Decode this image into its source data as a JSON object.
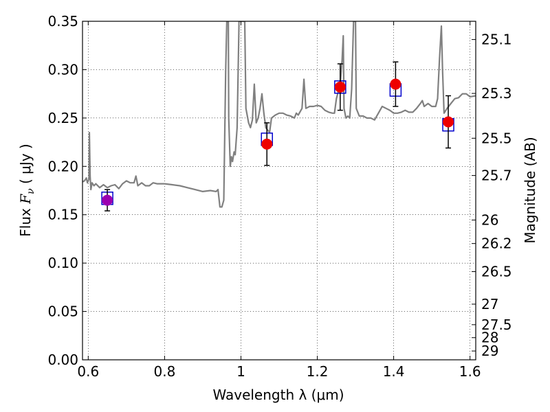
{
  "chart_data": {
    "type": "scatter",
    "title": "",
    "xlabel": "Wavelength  λ (μm)",
    "ylabel_prefix": "Flux  ",
    "ylabel_var": "F",
    "ylabel_sub": "ν",
    "ylabel_units": "  ( μJy )",
    "y2label": "Magnitude (AB)",
    "xlim": [
      0.585,
      1.615
    ],
    "ylim": [
      0.0,
      0.35
    ],
    "x_ticks": [
      0.6,
      0.8,
      1.0,
      1.2,
      1.4,
      1.6
    ],
    "x_tick_labels": [
      "0.6",
      "0.8",
      "1",
      "1.2",
      "1.4",
      "1.6"
    ],
    "y_ticks": [
      0.0,
      0.05,
      0.1,
      0.15,
      0.2,
      0.25,
      0.3,
      0.35
    ],
    "y_tick_labels": [
      "0.00",
      "0.05",
      "0.10",
      "0.15",
      "0.20",
      "0.25",
      "0.30",
      "0.35"
    ],
    "y2_ticks": [
      {
        "mag": 25.1,
        "label": "25.1"
      },
      {
        "mag": 25.3,
        "label": "25.3"
      },
      {
        "mag": 25.5,
        "label": "25.5"
      },
      {
        "mag": 25.7,
        "label": "25.7"
      },
      {
        "mag": 26.0,
        "label": "26"
      },
      {
        "mag": 26.2,
        "label": "26.2"
      },
      {
        "mag": 26.5,
        "label": "26.5"
      },
      {
        "mag": 27.0,
        "label": "27"
      },
      {
        "mag": 27.5,
        "label": "27.5"
      },
      {
        "mag": 28.0,
        "label": "28"
      },
      {
        "mag": 29.0,
        "label": "29"
      }
    ],
    "grid": true,
    "colors": {
      "spectrum": "#808080",
      "observed": "#ee0000",
      "observed_first": "#9b00b0",
      "model_box": "#0000cc",
      "errorbar": "#000000"
    },
    "observed_points": [
      {
        "x": 0.65,
        "y": 0.165,
        "err": 0.011
      },
      {
        "x": 1.068,
        "y": 0.223,
        "err": 0.022
      },
      {
        "x": 1.26,
        "y": 0.282,
        "err": 0.024
      },
      {
        "x": 1.405,
        "y": 0.285,
        "err": 0.023
      },
      {
        "x": 1.543,
        "y": 0.246,
        "err": 0.027
      }
    ],
    "model_points": [
      {
        "x": 0.65,
        "y": 0.167
      },
      {
        "x": 1.068,
        "y": 0.228
      },
      {
        "x": 1.26,
        "y": 0.282
      },
      {
        "x": 1.405,
        "y": 0.279
      },
      {
        "x": 1.543,
        "y": 0.243
      }
    ],
    "spectrum": [
      [
        0.585,
        0.184
      ],
      [
        0.59,
        0.185
      ],
      [
        0.595,
        0.188
      ],
      [
        0.598,
        0.183
      ],
      [
        0.602,
        0.187
      ],
      [
        0.603,
        0.235
      ],
      [
        0.605,
        0.19
      ],
      [
        0.607,
        0.176
      ],
      [
        0.61,
        0.183
      ],
      [
        0.615,
        0.18
      ],
      [
        0.62,
        0.182
      ],
      [
        0.63,
        0.178
      ],
      [
        0.64,
        0.181
      ],
      [
        0.65,
        0.178
      ],
      [
        0.66,
        0.18
      ],
      [
        0.67,
        0.181
      ],
      [
        0.68,
        0.177
      ],
      [
        0.69,
        0.182
      ],
      [
        0.7,
        0.185
      ],
      [
        0.71,
        0.183
      ],
      [
        0.72,
        0.183
      ],
      [
        0.725,
        0.19
      ],
      [
        0.73,
        0.18
      ],
      [
        0.74,
        0.183
      ],
      [
        0.75,
        0.18
      ],
      [
        0.76,
        0.18
      ],
      [
        0.77,
        0.183
      ],
      [
        0.78,
        0.182
      ],
      [
        0.8,
        0.182
      ],
      [
        0.82,
        0.181
      ],
      [
        0.84,
        0.18
      ],
      [
        0.86,
        0.178
      ],
      [
        0.88,
        0.176
      ],
      [
        0.9,
        0.174
      ],
      [
        0.92,
        0.175
      ],
      [
        0.935,
        0.174
      ],
      [
        0.94,
        0.176
      ],
      [
        0.945,
        0.158
      ],
      [
        0.95,
        0.158
      ],
      [
        0.955,
        0.165
      ],
      [
        0.96,
        0.3
      ],
      [
        0.963,
        0.35
      ],
      [
        0.967,
        0.35
      ],
      [
        0.968,
        0.25
      ],
      [
        0.972,
        0.2
      ],
      [
        0.975,
        0.21
      ],
      [
        0.978,
        0.205
      ],
      [
        0.982,
        0.215
      ],
      [
        0.985,
        0.212
      ],
      [
        0.99,
        0.24
      ],
      [
        0.995,
        0.35
      ],
      [
        1.01,
        0.35
      ],
      [
        1.013,
        0.26
      ],
      [
        1.02,
        0.245
      ],
      [
        1.025,
        0.24
      ],
      [
        1.03,
        0.248
      ],
      [
        1.035,
        0.285
      ],
      [
        1.04,
        0.245
      ],
      [
        1.045,
        0.25
      ],
      [
        1.05,
        0.26
      ],
      [
        1.055,
        0.275
      ],
      [
        1.06,
        0.255
      ],
      [
        1.065,
        0.24
      ],
      [
        1.075,
        0.235
      ],
      [
        1.08,
        0.25
      ],
      [
        1.09,
        0.253
      ],
      [
        1.1,
        0.255
      ],
      [
        1.11,
        0.255
      ],
      [
        1.12,
        0.253
      ],
      [
        1.13,
        0.252
      ],
      [
        1.14,
        0.25
      ],
      [
        1.145,
        0.255
      ],
      [
        1.15,
        0.253
      ],
      [
        1.16,
        0.26
      ],
      [
        1.165,
        0.29
      ],
      [
        1.17,
        0.26
      ],
      [
        1.18,
        0.262
      ],
      [
        1.19,
        0.262
      ],
      [
        1.2,
        0.263
      ],
      [
        1.21,
        0.262
      ],
      [
        1.22,
        0.258
      ],
      [
        1.23,
        0.256
      ],
      [
        1.24,
        0.255
      ],
      [
        1.245,
        0.255
      ],
      [
        1.25,
        0.27
      ],
      [
        1.26,
        0.285
      ],
      [
        1.265,
        0.31
      ],
      [
        1.268,
        0.335
      ],
      [
        1.27,
        0.26
      ],
      [
        1.275,
        0.25
      ],
      [
        1.28,
        0.252
      ],
      [
        1.285,
        0.25
      ],
      [
        1.29,
        0.28
      ],
      [
        1.295,
        0.35
      ],
      [
        1.3,
        0.35
      ],
      [
        1.302,
        0.26
      ],
      [
        1.31,
        0.252
      ],
      [
        1.32,
        0.252
      ],
      [
        1.33,
        0.25
      ],
      [
        1.34,
        0.25
      ],
      [
        1.35,
        0.248
      ],
      [
        1.36,
        0.255
      ],
      [
        1.37,
        0.262
      ],
      [
        1.38,
        0.26
      ],
      [
        1.39,
        0.258
      ],
      [
        1.4,
        0.255
      ],
      [
        1.41,
        0.255
      ],
      [
        1.42,
        0.256
      ],
      [
        1.43,
        0.258
      ],
      [
        1.44,
        0.256
      ],
      [
        1.45,
        0.256
      ],
      [
        1.46,
        0.26
      ],
      [
        1.47,
        0.265
      ],
      [
        1.475,
        0.268
      ],
      [
        1.48,
        0.262
      ],
      [
        1.49,
        0.265
      ],
      [
        1.5,
        0.262
      ],
      [
        1.51,
        0.262
      ],
      [
        1.515,
        0.27
      ],
      [
        1.52,
        0.31
      ],
      [
        1.525,
        0.345
      ],
      [
        1.528,
        0.3
      ],
      [
        1.532,
        0.255
      ],
      [
        1.54,
        0.26
      ],
      [
        1.55,
        0.265
      ],
      [
        1.56,
        0.27
      ],
      [
        1.57,
        0.271
      ],
      [
        1.58,
        0.275
      ],
      [
        1.59,
        0.275
      ],
      [
        1.6,
        0.272
      ],
      [
        1.615,
        0.273
      ]
    ]
  }
}
